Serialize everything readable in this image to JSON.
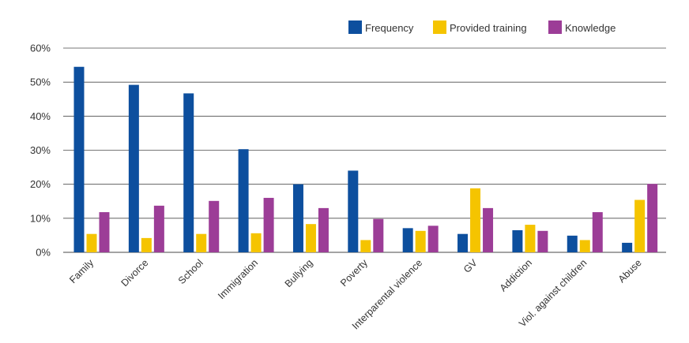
{
  "chart_data": {
    "type": "bar",
    "title": "",
    "xlabel": "",
    "ylabel": "",
    "ylim": [
      0,
      60
    ],
    "yticks": [
      0,
      10,
      20,
      30,
      40,
      50,
      60
    ],
    "ytick_labels": [
      "0%",
      "10%",
      "20%",
      "30%",
      "40%",
      "50%",
      "60%"
    ],
    "grid": true,
    "legend_position": "top-right",
    "categories": [
      "Family",
      "Divorce",
      "School",
      "Immigration",
      "Bullying",
      "Poverty",
      "Interparental violence",
      "GV",
      "Addiction",
      "Viol. against children",
      "Abuse"
    ],
    "series": [
      {
        "name": "Frequency",
        "color": "#0d4f9e",
        "values": [
          54.5,
          49.2,
          46.7,
          30.3,
          20.0,
          24.0,
          7.1,
          5.4,
          6.5,
          4.9,
          2.8
        ]
      },
      {
        "name": "Provided training",
        "color": "#f5c400",
        "values": [
          5.4,
          4.2,
          5.4,
          5.6,
          8.3,
          3.6,
          6.3,
          18.8,
          8.1,
          3.6,
          15.4
        ]
      },
      {
        "name": "Knowledge",
        "color": "#9c3d97",
        "values": [
          11.8,
          13.7,
          15.1,
          16.0,
          13.0,
          9.8,
          7.8,
          13.0,
          6.3,
          11.8,
          20.1
        ]
      }
    ]
  }
}
